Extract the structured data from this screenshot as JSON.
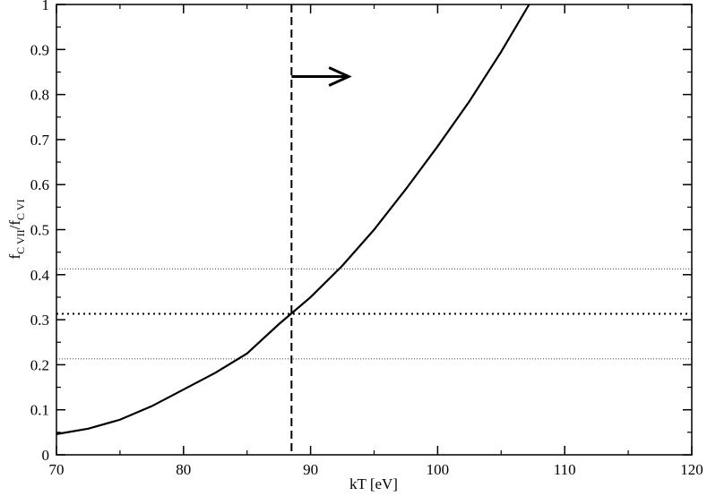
{
  "chart_data": {
    "type": "line",
    "x": [
      70,
      72.5,
      75,
      77.5,
      80,
      82.5,
      85,
      87.5,
      90,
      92.5,
      95,
      97.5,
      100,
      102.5,
      105,
      107.2
    ],
    "values": [
      0.046,
      0.058,
      0.078,
      0.108,
      0.145,
      0.182,
      0.225,
      0.29,
      0.35,
      0.42,
      0.5,
      0.59,
      0.685,
      0.785,
      0.895,
      1.0
    ],
    "color": "#000000",
    "xlabel": "kT [eV]",
    "ylabel": [
      "f",
      "C VII",
      "/f",
      "C VI"
    ],
    "xlim": [
      70,
      120
    ],
    "ylim": [
      0,
      1
    ],
    "xticks": [
      70,
      80,
      90,
      100,
      110,
      120
    ],
    "yticks": [
      0,
      0.1,
      0.2,
      0.3,
      0.4,
      0.5,
      0.6,
      0.7,
      0.8,
      0.9,
      1
    ],
    "xminorticks": [
      75,
      85,
      95,
      105,
      115
    ],
    "yminorticks": [
      0.05,
      0.15,
      0.25,
      0.35,
      0.45,
      0.55,
      0.65,
      0.75,
      0.85,
      0.95
    ],
    "hlines": [
      {
        "value": 0.413,
        "style": "thin-dotted"
      },
      {
        "value": 0.313,
        "style": "thick-dotted"
      },
      {
        "value": 0.213,
        "style": "thin-dotted"
      }
    ],
    "vline": 88.5,
    "arrow": {
      "x": [
        88.5,
        93
      ],
      "y": 0.84
    }
  }
}
